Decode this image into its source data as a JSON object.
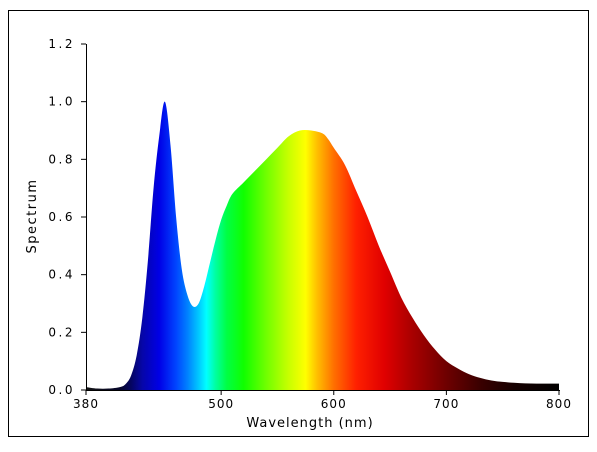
{
  "chart_data": {
    "type": "area",
    "title": "",
    "xlabel": "Wavelength (nm)",
    "ylabel": "Spectrum",
    "xlim": [
      380,
      800
    ],
    "ylim": [
      0,
      1.2
    ],
    "x_ticks": [
      380,
      500,
      600,
      700,
      800
    ],
    "x_tick_labels": [
      "380",
      "500",
      "600",
      "700",
      "800"
    ],
    "y_ticks": [
      0.0,
      0.2,
      0.4,
      0.6,
      0.8,
      1.0,
      1.2
    ],
    "y_tick_labels": [
      "0.0",
      "0.2",
      "0.4",
      "0.6",
      "0.8",
      "1.0",
      "1.2"
    ],
    "grid": false,
    "legend": "none",
    "fill": "visible-spectrum color gradient",
    "series": [
      {
        "x": [
          380,
          390,
          400,
          410,
          415,
          420,
          425,
          430,
          435,
          440,
          445,
          450,
          455,
          460,
          465,
          470,
          475,
          480,
          485,
          490,
          495,
          500,
          505,
          510,
          520,
          530,
          540,
          550,
          560,
          570,
          580,
          590,
          595,
          600,
          610,
          620,
          630,
          640,
          650,
          660,
          670,
          680,
          690,
          700,
          710,
          720,
          730,
          740,
          750,
          760,
          770,
          780,
          790,
          800
        ],
        "y": [
          0.01,
          0.005,
          0.005,
          0.01,
          0.02,
          0.05,
          0.12,
          0.25,
          0.45,
          0.7,
          0.88,
          1.0,
          0.85,
          0.6,
          0.42,
          0.33,
          0.29,
          0.3,
          0.36,
          0.44,
          0.52,
          0.59,
          0.64,
          0.68,
          0.72,
          0.76,
          0.8,
          0.84,
          0.88,
          0.9,
          0.9,
          0.89,
          0.87,
          0.84,
          0.78,
          0.69,
          0.6,
          0.5,
          0.41,
          0.32,
          0.25,
          0.19,
          0.14,
          0.1,
          0.075,
          0.055,
          0.042,
          0.033,
          0.028,
          0.025,
          0.023,
          0.022,
          0.022,
          0.022
        ]
      }
    ]
  }
}
